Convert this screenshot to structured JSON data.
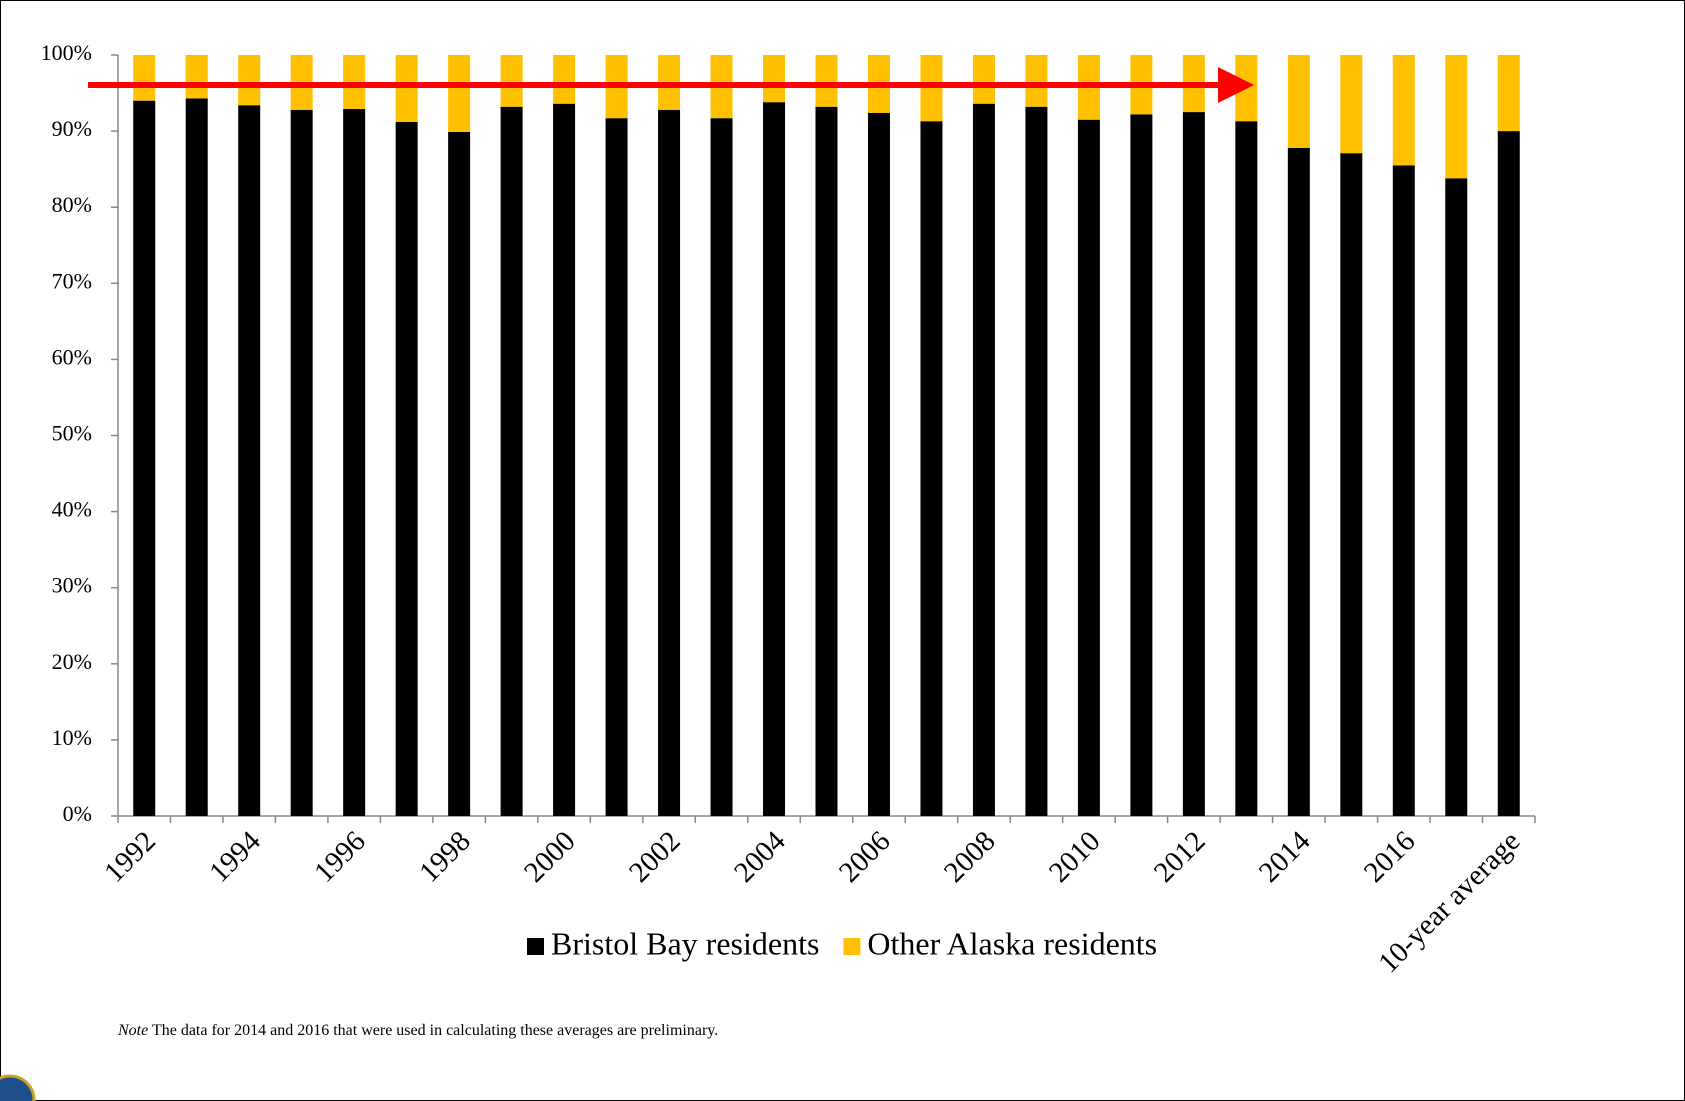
{
  "chart_data": {
    "type": "stacked-bar",
    "categories": [
      "1992",
      null,
      "1994",
      null,
      "1996",
      null,
      "1998",
      null,
      "2000",
      null,
      "2002",
      null,
      "2004",
      null,
      "2006",
      null,
      "2008",
      null,
      "2010",
      null,
      "2012",
      null,
      "2014",
      null,
      "2016",
      null,
      "10-year average"
    ],
    "series": [
      {
        "name": "Bristol Bay residents",
        "color": "#000000",
        "values": [
          94.0,
          94.3,
          93.4,
          92.8,
          92.9,
          91.2,
          89.9,
          93.2,
          93.6,
          91.7,
          92.8,
          91.7,
          93.8,
          93.2,
          92.4,
          91.3,
          93.6,
          93.2,
          91.5,
          92.2,
          92.5,
          91.3,
          87.8,
          87.1,
          85.5,
          83.8,
          90.0
        ]
      },
      {
        "name": "Other Alaska residents",
        "color": "#FFC000",
        "values": [
          6.0,
          5.7,
          6.6,
          7.2,
          7.1,
          8.8,
          10.1,
          6.8,
          6.4,
          8.3,
          7.2,
          8.3,
          6.2,
          6.8,
          7.6,
          8.7,
          6.4,
          6.8,
          8.5,
          7.8,
          7.5,
          8.7,
          12.2,
          12.9,
          14.5,
          16.2,
          10.0
        ]
      }
    ],
    "ylim": [
      0,
      100
    ],
    "yticks": [
      {
        "value": 0,
        "label": "0%"
      },
      {
        "value": 10,
        "label": "10%"
      },
      {
        "value": 20,
        "label": "20%"
      },
      {
        "value": 30,
        "label": "30%"
      },
      {
        "value": 40,
        "label": "40%"
      },
      {
        "value": 50,
        "label": "50%"
      },
      {
        "value": 60,
        "label": "60%"
      },
      {
        "value": 70,
        "label": "70%"
      },
      {
        "value": 80,
        "label": "80%"
      },
      {
        "value": 90,
        "label": "90%"
      },
      {
        "value": 100,
        "label": "100%"
      }
    ],
    "grid": false,
    "note_label": "Note",
    "note": "The data for 2014 and 2016 that were used in calculating these averages are preliminary."
  }
}
